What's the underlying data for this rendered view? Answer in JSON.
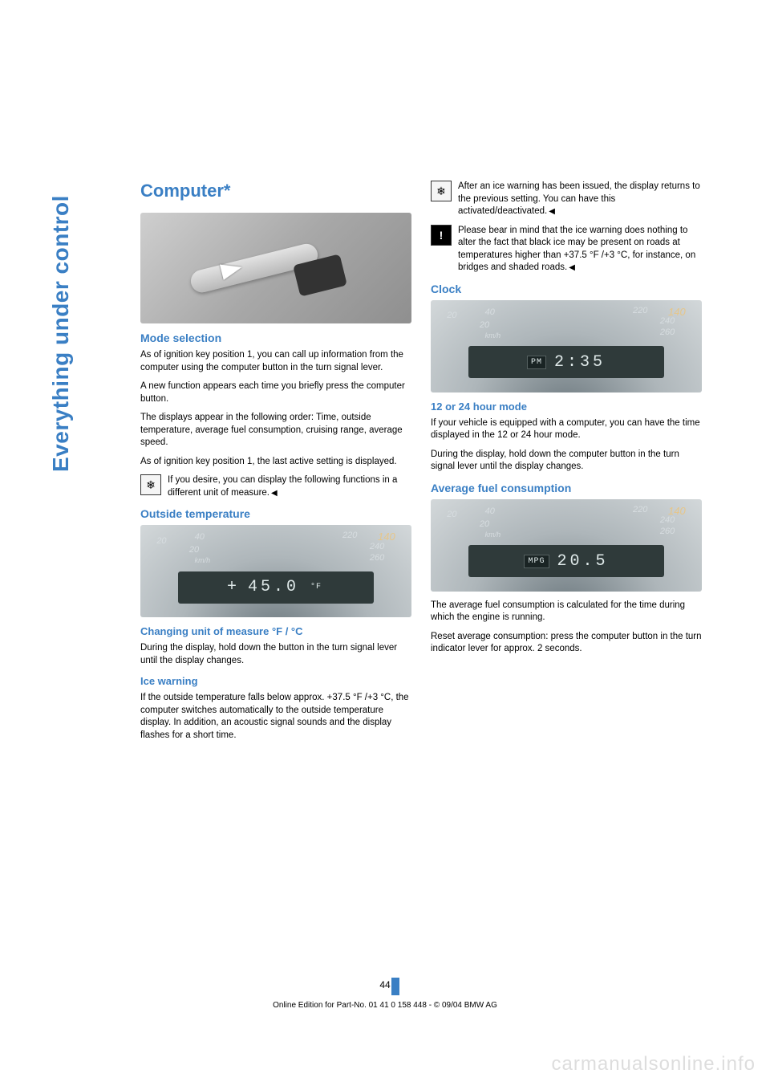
{
  "sidebar": {
    "label": "Everything under control"
  },
  "left": {
    "title": "Computer*",
    "mode_selection": {
      "heading": "Mode selection",
      "p1": "As of ignition key position 1, you can call up information from the computer using the computer button in the turn signal lever.",
      "p2": "A new function appears each time you briefly press the computer button.",
      "p3": "The displays appear in the following order: Time, outside temperature, average fuel consumption, cruising range, average speed.",
      "p4": "As of ignition key position 1, the last active setting is displayed.",
      "note": "If you desire, you can display the following functions in a different unit of measure."
    },
    "outside_temp": {
      "heading": "Outside temperature",
      "gauge": {
        "value": "45.0",
        "prefix": "+",
        "unit": "°F",
        "dial_20": "20",
        "dial_40": "40",
        "dial_m20": "20",
        "dial_kmh": "km/h",
        "dial_140": "140",
        "dial_220": "220",
        "dial_240": "240",
        "dial_260": "260"
      },
      "change_heading": "Changing unit of measure  °F / °C",
      "change_body": "During the display, hold down the button in the turn signal lever until the display changes."
    },
    "ice": {
      "heading": "Ice warning",
      "body": "If the outside temperature falls below approx. +37.5 °F /+3 °C, the computer switches automatically to the outside temperature display. In addition, an acoustic signal sounds and the display flashes for a short time."
    }
  },
  "right": {
    "ice_note": "After an ice warning has been issued, the display returns to the previous setting. You can have this activated/deactivated.",
    "warn_note": "Please bear in mind that the ice warning does nothing to alter the fact that black ice may be present on roads at temperatures higher than +37.5 °F /+3 °C, for instance, on bridges and shaded roads.",
    "clock": {
      "heading": "Clock",
      "gauge": {
        "value": "2:35",
        "unit": "PM",
        "dial_20": "20",
        "dial_40": "40",
        "dial_m20": "20",
        "dial_kmh": "km/h",
        "dial_140": "140",
        "dial_220": "220",
        "dial_240": "240",
        "dial_260": "260"
      }
    },
    "mode1224": {
      "heading": "12 or 24 hour mode",
      "p1": "If your vehicle is equipped with a computer, you can have the time displayed in the 12 or 24 hour mode.",
      "p2": "During the display, hold down the computer button in the turn signal lever until the display changes."
    },
    "avg": {
      "heading": "Average fuel consumption",
      "gauge": {
        "value": "20.5",
        "unit": "MPG",
        "dial_20": "20",
        "dial_40": "40",
        "dial_m20": "20",
        "dial_kmh": "km/h",
        "dial_140": "140",
        "dial_220": "220",
        "dial_240": "240",
        "dial_260": "260"
      },
      "p1": "The average fuel consumption is calculated for the time during which the engine is running.",
      "p2": "Reset average consumption: press the computer button in the turn indicator lever for approx. 2 seconds."
    }
  },
  "footer": {
    "page_num": "44",
    "line": "Online Edition for Part-No. 01 41 0 158 448 - © 09/04 BMW AG"
  },
  "watermark": "carmanualsonline.info",
  "icons": {
    "snow": "❄",
    "warn": "!"
  }
}
